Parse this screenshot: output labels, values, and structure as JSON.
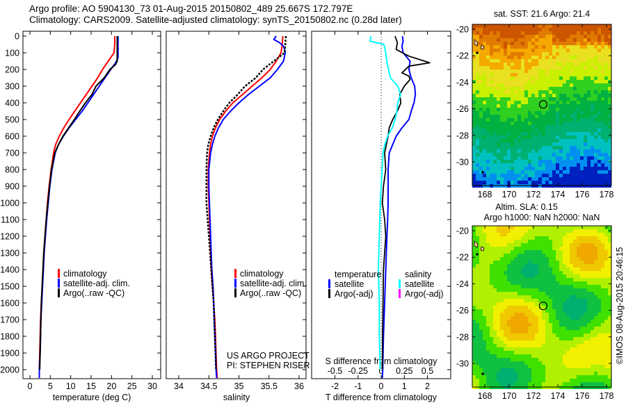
{
  "header": {
    "line1": "Argo profile: AO 5904130_73 01-Aug-2015 20150802_489 25.667S 172.797E",
    "line2": "Climatology: CARS2009. Satellite-adjusted climatology: synTS_20150802.nc (0.28d later)"
  },
  "colors": {
    "climatology": "#ff0000",
    "satellite": "#0000ff",
    "argo": "#000000",
    "sal_satellite": "#00ffff",
    "sal_argo": "#ff00ff"
  },
  "chart_data": [
    {
      "type": "line",
      "title": "",
      "xlabel": "temperature (deg C)",
      "ylabel": "",
      "xlim": [
        -1.5,
        32
      ],
      "ylim": [
        2060,
        0
      ],
      "xticks": [
        "0",
        "5",
        "10",
        "15",
        "20",
        "25",
        "30"
      ],
      "xtick_values": [
        0,
        5,
        10,
        15,
        20,
        25,
        30
      ],
      "yticks": [
        "0",
        "100",
        "200",
        "300",
        "400",
        "500",
        "600",
        "700",
        "800",
        "900",
        "1000",
        "1100",
        "1200",
        "1300",
        "1400",
        "1500",
        "1600",
        "1700",
        "1800",
        "1900",
        "2000"
      ],
      "ytick_values": [
        0,
        100,
        200,
        300,
        400,
        500,
        600,
        700,
        800,
        900,
        1000,
        1100,
        1200,
        1300,
        1400,
        1500,
        1600,
        1700,
        1800,
        1900,
        2000
      ],
      "legend": [
        "climatology",
        "satellite-adj. clim.",
        "Argo(..raw -QC)"
      ],
      "legend_position": "center",
      "series": [
        {
          "name": "climatology",
          "depth": [
            0,
            50,
            100,
            150,
            200,
            250,
            300,
            350,
            400,
            450,
            500,
            550,
            600,
            650,
            700,
            800,
            900,
            1000,
            1100,
            1200,
            1300,
            1400,
            1500,
            1600,
            1700,
            1800,
            1900,
            2000,
            2050
          ],
          "values": [
            20.8,
            20.8,
            20.6,
            19.2,
            17.8,
            16.6,
            15.2,
            13.8,
            12.4,
            11.0,
            9.6,
            8.3,
            7.2,
            6.3,
            5.8,
            5.2,
            4.7,
            4.3,
            4.0,
            3.7,
            3.4,
            3.2,
            3.0,
            2.8,
            2.6,
            2.5,
            2.4,
            2.3,
            2.3
          ]
        },
        {
          "name": "satellite-adj. clim.",
          "depth": [
            0,
            50,
            100,
            130,
            160,
            200,
            250,
            300,
            350,
            400,
            450,
            500,
            550,
            600,
            650,
            700,
            800,
            900,
            1000,
            1100,
            1200,
            1300,
            1400,
            1500,
            1600,
            1700,
            1800,
            1900,
            2000,
            2050
          ],
          "values": [
            21.6,
            21.6,
            21.6,
            21.6,
            21.0,
            19.8,
            18.4,
            17.0,
            15.6,
            14.2,
            12.8,
            11.2,
            9.6,
            8.2,
            7.0,
            6.2,
            5.4,
            4.9,
            4.5,
            4.1,
            3.8,
            3.5,
            3.3,
            3.1,
            2.9,
            2.7,
            2.6,
            2.5,
            2.3,
            2.3
          ]
        },
        {
          "name": "Argo(..raw -QC)",
          "depth": [
            0,
            50,
            100,
            150,
            170,
            200,
            250,
            300,
            350,
            400,
            450,
            500,
            550,
            600,
            650,
            700,
            800,
            900,
            1000,
            1100,
            1200,
            1300,
            1400,
            1500,
            1600,
            1700,
            1800,
            1900,
            2000
          ],
          "values": [
            21.4,
            21.4,
            21.4,
            21.4,
            21.0,
            19.6,
            18.2,
            16.2,
            15.2,
            13.6,
            12.2,
            10.9,
            9.5,
            8.1,
            7.0,
            6.1,
            5.3,
            4.8,
            4.4,
            4.0,
            3.7,
            3.4,
            3.2,
            3.0,
            2.8,
            2.7,
            2.6,
            2.5,
            2.4
          ]
        }
      ]
    },
    {
      "type": "line",
      "title": "",
      "xlabel": "salinity",
      "ylabel": "",
      "xlim": [
        33.8,
        36.1
      ],
      "ylim": [
        2060,
        0
      ],
      "xticks": [
        "34",
        "34.5",
        "35",
        "35.5",
        "36"
      ],
      "xtick_values": [
        34,
        34.5,
        35,
        35.5,
        36
      ],
      "legend": [
        "climatology",
        "satellite-adj. clim.",
        "Argo(..raw -QC)"
      ],
      "legend_position": "center-right",
      "annotations": [
        "US ARGO PROJECT",
        "PI: STEPHEN RISER"
      ],
      "series": [
        {
          "name": "climatology",
          "depth": [
            0,
            50,
            100,
            150,
            200,
            250,
            300,
            350,
            400,
            450,
            500,
            550,
            600,
            650,
            700,
            800,
            900,
            1000,
            1100,
            1200,
            1300,
            1400,
            1500,
            1600,
            1700,
            1800,
            1900,
            2000,
            2050
          ],
          "values": [
            35.73,
            35.72,
            35.7,
            35.62,
            35.52,
            35.38,
            35.22,
            35.06,
            34.9,
            34.78,
            34.68,
            34.61,
            34.56,
            34.53,
            34.51,
            34.49,
            34.49,
            34.5,
            34.51,
            34.52,
            34.53,
            34.54,
            34.56,
            34.58,
            34.6,
            34.61,
            34.62,
            34.63,
            34.64
          ]
        },
        {
          "name": "satellite-adj. clim.",
          "depth": [
            0,
            20,
            40,
            60,
            80,
            100,
            150,
            200,
            250,
            300,
            350,
            400,
            450,
            500,
            550,
            600,
            650,
            700,
            800,
            900,
            1000,
            1100,
            1200,
            1300,
            1400,
            1500,
            1600,
            1700,
            1800,
            1900,
            2000,
            2050
          ],
          "values": [
            35.62,
            35.58,
            35.68,
            35.74,
            35.76,
            35.77,
            35.74,
            35.64,
            35.52,
            35.34,
            35.16,
            35.0,
            34.86,
            34.74,
            34.66,
            34.6,
            34.56,
            34.53,
            34.5,
            34.5,
            34.51,
            34.52,
            34.53,
            34.54,
            34.55,
            34.57,
            34.58,
            34.59,
            34.6,
            34.61,
            34.62,
            34.63
          ]
        },
        {
          "name": "Argo(..raw -QC)",
          "depth": [
            0,
            50,
            100,
            150,
            200,
            250,
            300,
            350,
            400,
            450,
            500,
            550,
            600,
            650,
            700,
            800,
            900,
            1000,
            1100,
            1200,
            1300,
            1400,
            1500,
            1600,
            1700,
            1800,
            1900,
            2000
          ],
          "values": [
            35.78,
            35.77,
            35.76,
            35.58,
            35.4,
            35.28,
            35.1,
            34.98,
            34.84,
            34.74,
            34.65,
            34.58,
            34.53,
            34.49,
            34.47,
            34.46,
            34.46,
            34.46,
            34.48,
            34.5,
            34.52,
            34.54,
            34.56,
            34.58,
            34.59,
            34.6,
            34.61,
            34.62
          ]
        }
      ]
    },
    {
      "type": "line",
      "title": "",
      "xlabel": "T difference from climatology",
      "xlabel_top": "S difference from climatology",
      "ylabel": "",
      "xlim": [
        -3,
        3
      ],
      "ylim": [
        2060,
        0
      ],
      "xticks": [
        "-2",
        "-1",
        "0",
        "1",
        "2"
      ],
      "xtick_values": [
        -2,
        -1,
        0,
        1,
        2
      ],
      "s_xticks": [
        "-0.5",
        "-0.25",
        "0",
        "0.25",
        "0.5"
      ],
      "s_xtick_values": [
        -0.5,
        -0.25,
        0,
        0.25,
        0.5
      ],
      "legend": {
        "temperature_heading": "temperature",
        "salinity_heading": "salinity",
        "items": [
          "satellite",
          "Argo(-adj)",
          "satellite",
          "Argo(-adj)"
        ]
      },
      "series": [
        {
          "name": "temperature satellite",
          "depth": [
            0,
            30,
            60,
            100,
            150,
            200,
            250,
            300,
            350,
            400,
            450,
            500,
            550,
            600,
            700,
            800,
            900,
            1000,
            1100,
            1200,
            1400,
            1600,
            1800,
            2000,
            2050
          ],
          "values": [
            0.92,
            0.95,
            0.9,
            0.95,
            1.25,
            1.2,
            1.3,
            1.45,
            1.48,
            1.42,
            1.3,
            1.2,
            0.9,
            0.65,
            0.35,
            0.3,
            0.3,
            0.3,
            0.28,
            0.25,
            0.2,
            0.15,
            0.1,
            0.07,
            0.05
          ]
        },
        {
          "name": "temperature Argo(-adj)",
          "depth": [
            0,
            40,
            80,
            120,
            160,
            180,
            220,
            240,
            260,
            300,
            350,
            400,
            450,
            500,
            550,
            600,
            700,
            800,
            900,
            1000,
            1100,
            1200,
            1400,
            1600,
            1800,
            2000
          ],
          "values": [
            0.6,
            0.7,
            0.65,
            1.2,
            2.1,
            1.2,
            0.9,
            1.2,
            1.25,
            1.0,
            0.8,
            0.85,
            0.7,
            0.5,
            0.35,
            0.3,
            0.15,
            0.2,
            0.1,
            0.05,
            0.15,
            0.2,
            0.1,
            0.08,
            0.06,
            0.05
          ]
        },
        {
          "name": "salinity satellite",
          "depth": [
            0,
            30,
            50,
            100,
            150,
            250,
            300,
            350,
            400,
            450,
            500,
            550,
            600,
            650,
            700,
            800,
            900,
            1000,
            1200,
            1400,
            1600,
            1800,
            2000
          ],
          "values": [
            -0.11,
            -0.12,
            0.03,
            0.05,
            0.06,
            0.1,
            0.18,
            0.21,
            0.18,
            0.17,
            0.15,
            0.12,
            0.07,
            0.04,
            0.02,
            0.01,
            0.0,
            -0.01,
            -0.02,
            -0.03,
            -0.02,
            -0.02,
            -0.01
          ]
        }
      ]
    },
    {
      "type": "heatmap",
      "title": "sat. SST: 21.6 Argo: 21.4",
      "xticks": [
        "168",
        "170",
        "172",
        "174",
        "176",
        "178"
      ],
      "xtick_values": [
        168,
        170,
        172,
        174,
        176,
        178
      ],
      "yticks": [
        "-20",
        "-22",
        "-24",
        "-26",
        "-28",
        "-30"
      ],
      "ytick_values": [
        -20,
        -22,
        -24,
        -26,
        -28,
        -30
      ],
      "xlim": [
        167.2,
        178.5
      ],
      "ylim": [
        -31.8,
        -19.6
      ],
      "marker": {
        "lon": 172.797,
        "lat": -25.667
      }
    },
    {
      "type": "heatmap",
      "title": "Altim. SLA: 0.15",
      "subtitle": "Argo h1000: NaN h2000: NaN",
      "xticks": [
        "168",
        "170",
        "172",
        "174",
        "176",
        "178"
      ],
      "xtick_values": [
        168,
        170,
        172,
        174,
        176,
        178
      ],
      "yticks": [
        "-20",
        "-22",
        "-24",
        "-26",
        "-28",
        "-30"
      ],
      "ytick_values": [
        -20,
        -22,
        -24,
        -26,
        -28,
        -30
      ],
      "xlim": [
        167.2,
        178.5
      ],
      "ylim": [
        -31.8,
        -19.6
      ],
      "marker": {
        "lon": 172.797,
        "lat": -25.667
      },
      "side_label": "©IMOS 08-Aug-2015 20:46:15"
    }
  ]
}
